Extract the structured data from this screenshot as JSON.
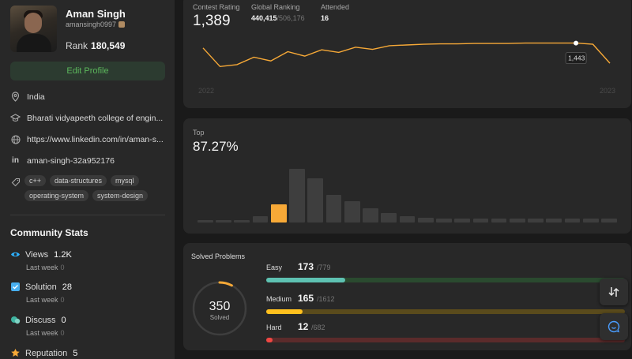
{
  "profile": {
    "name": "Aman Singh",
    "username": "amansingh0997",
    "rank_label": "Rank",
    "rank_value": "180,549",
    "edit_label": "Edit Profile",
    "location": "India",
    "school": "Bharati vidyapeeth college of engin...",
    "website": "https://www.linkedin.com/in/aman-s...",
    "linkedin": "aman-singh-32a952176",
    "skills": [
      "c++",
      "data-structures",
      "mysql",
      "operating-system",
      "system-design"
    ]
  },
  "community": {
    "title": "Community Stats",
    "stats": [
      {
        "label": "Views",
        "value": "1.2K",
        "last_week_label": "Last week",
        "last_week_value": "0",
        "icon": "eye-icon",
        "color": "#2db1ff"
      },
      {
        "label": "Solution",
        "value": "28",
        "last_week_label": "Last week",
        "last_week_value": "0",
        "icon": "check-square-icon",
        "color": "#48b0f1"
      },
      {
        "label": "Discuss",
        "value": "0",
        "last_week_label": "Last week",
        "last_week_value": "0",
        "icon": "chat-bubbles-icon",
        "color": "#3fb4a1"
      },
      {
        "label": "Reputation",
        "value": "5",
        "icon": "star-icon",
        "color": "#f7a937"
      }
    ]
  },
  "contest": {
    "rating_label": "Contest Rating",
    "rating_value": "1,389",
    "global_label": "Global Ranking",
    "global_value": "440,415",
    "global_total": "/506,176",
    "attended_label": "Attended",
    "attended_value": "16",
    "year_start": "2022",
    "year_end": "2023",
    "tooltip_value": "1,443",
    "rating_history": [
      1430,
      1380,
      1385,
      1405,
      1395,
      1420,
      1408,
      1425,
      1418,
      1432,
      1426,
      1436,
      1438,
      1440,
      1441,
      1441,
      1442,
      1442,
      1442,
      1443,
      1443,
      1443,
      1443,
      1440,
      1389
    ],
    "accent": "#f7a937"
  },
  "top": {
    "label": "Top",
    "value": "87.27%",
    "distribution": [
      4,
      4,
      4,
      9,
      27,
      80,
      66,
      41,
      32,
      21,
      14,
      9,
      7,
      6,
      6,
      6,
      6,
      6,
      6,
      6,
      6,
      6,
      6
    ],
    "highlight_index": 4
  },
  "solved": {
    "title": "Solved Problems",
    "total": "350",
    "total_label": "Solved",
    "progress_fraction": 0.077,
    "levels": [
      {
        "label": "Easy",
        "count": "173",
        "total": "/779",
        "fraction": 0.22,
        "fill": "#2cbb5d",
        "fillBright": "#5ec2b2",
        "track": "#2a4a2f"
      },
      {
        "label": "Medium",
        "count": "165",
        "total": "/1612",
        "fraction": 0.102,
        "fill": "#ffc01e",
        "track": "#5a4b1c"
      },
      {
        "label": "Hard",
        "count": "12",
        "total": "/682",
        "fraction": 0.018,
        "fill": "#ef4743",
        "track": "#5b2b2b"
      }
    ]
  }
}
